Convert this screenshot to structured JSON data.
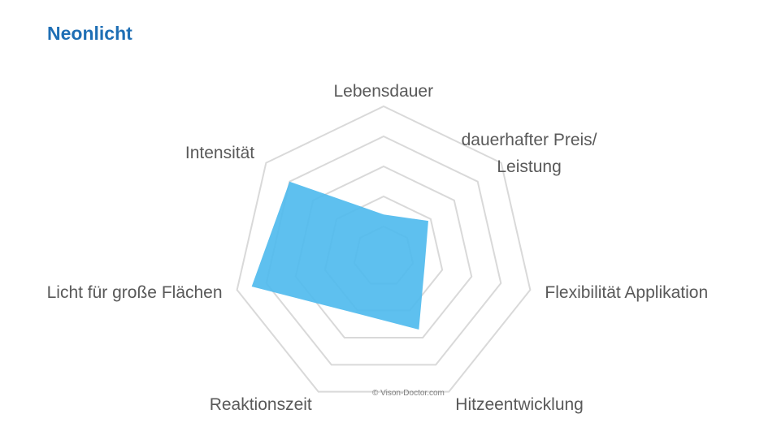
{
  "chart_data": {
    "type": "radar",
    "title": "Neonlicht",
    "categories": [
      "Lebensdauer",
      "dauerhafter Preis/\nLeistung",
      "Flexibilität Applikation",
      "Hitzeentwicklung",
      "Reaktionszeit",
      "Licht für große Flächen",
      "Intensität"
    ],
    "series": [
      {
        "color": "#4db9ed",
        "values": [
          1.4,
          1.9,
          1.4,
          2.7,
          2.1,
          4.5,
          4.0
        ]
      }
    ],
    "rlim": [
      0,
      5
    ],
    "rticks": [
      1,
      2,
      3,
      4,
      5
    ],
    "grid": true,
    "credit": "© Vison-Doctor.com"
  }
}
